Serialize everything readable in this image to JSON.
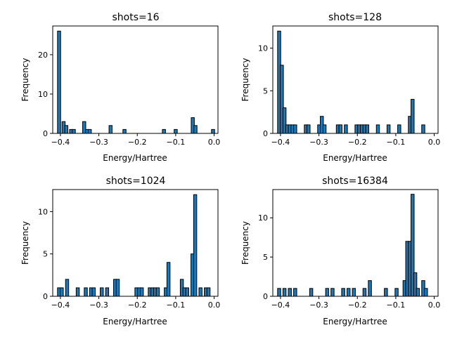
{
  "chart_data": [
    {
      "type": "bar",
      "title": "shots=16",
      "xlabel": "Energy/Hartree",
      "ylabel": "Frequency",
      "xlim": [
        -0.42,
        0.01
      ],
      "ylim": [
        0,
        27.3
      ],
      "xticks": [
        -0.4,
        -0.3,
        -0.2,
        -0.1,
        0.0
      ],
      "xtick_labels": [
        "−0.4",
        "−0.3",
        "−0.2",
        "−0.1",
        "0.0"
      ],
      "yticks": [
        0,
        10,
        20
      ],
      "bin_width": 0.0081,
      "bar_color": "#1f77b4",
      "bins": [
        {
          "x": -0.4035,
          "count": 26
        },
        {
          "x": -0.3917,
          "count": 3
        },
        {
          "x": -0.3847,
          "count": 2
        },
        {
          "x": -0.3722,
          "count": 1
        },
        {
          "x": -0.3652,
          "count": 1
        },
        {
          "x": -0.3381,
          "count": 3
        },
        {
          "x": -0.3306,
          "count": 1
        },
        {
          "x": -0.3236,
          "count": 1
        },
        {
          "x": -0.2694,
          "count": 2
        },
        {
          "x": -0.2333,
          "count": 1
        },
        {
          "x": -0.1306,
          "count": 1
        },
        {
          "x": -0.1,
          "count": 1
        },
        {
          "x": -0.0556,
          "count": 4
        },
        {
          "x": -0.0486,
          "count": 2
        },
        {
          "x": -0.0028,
          "count": 1
        }
      ]
    },
    {
      "type": "bar",
      "title": "shots=128",
      "xlabel": "Energy/Hartree",
      "ylabel": "Frequency",
      "xlim": [
        -0.42,
        0.01
      ],
      "ylim": [
        0,
        12.6
      ],
      "xticks": [
        -0.4,
        -0.3,
        -0.2,
        -0.1,
        0.0
      ],
      "xtick_labels": [
        "−0.4",
        "−0.3",
        "−0.2",
        "−0.1",
        "0.0"
      ],
      "yticks": [
        0,
        5,
        10
      ],
      "bin_width": 0.0081,
      "bar_color": "#1f77b4",
      "bins": [
        {
          "x": -0.4035,
          "count": 12
        },
        {
          "x": -0.3965,
          "count": 8
        },
        {
          "x": -0.3896,
          "count": 3
        },
        {
          "x": -0.3826,
          "count": 1
        },
        {
          "x": -0.3757,
          "count": 1
        },
        {
          "x": -0.3687,
          "count": 1
        },
        {
          "x": -0.3618,
          "count": 1
        },
        {
          "x": -0.334,
          "count": 1
        },
        {
          "x": -0.3271,
          "count": 1
        },
        {
          "x": -0.2993,
          "count": 1
        },
        {
          "x": -0.2924,
          "count": 2
        },
        {
          "x": -0.2854,
          "count": 1
        },
        {
          "x": -0.2507,
          "count": 1
        },
        {
          "x": -0.2438,
          "count": 1
        },
        {
          "x": -0.2299,
          "count": 1
        },
        {
          "x": -0.2021,
          "count": 1
        },
        {
          "x": -0.1951,
          "count": 1
        },
        {
          "x": -0.1882,
          "count": 1
        },
        {
          "x": -0.1813,
          "count": 1
        },
        {
          "x": -0.1743,
          "count": 1
        },
        {
          "x": -0.1465,
          "count": 1
        },
        {
          "x": -0.1188,
          "count": 1
        },
        {
          "x": -0.091,
          "count": 1
        },
        {
          "x": -0.0632,
          "count": 2
        },
        {
          "x": -0.0563,
          "count": 4
        },
        {
          "x": -0.0285,
          "count": 1
        }
      ]
    },
    {
      "type": "bar",
      "title": "shots=1024",
      "xlabel": "Energy/Hartree",
      "ylabel": "Frequency",
      "xlim": [
        -0.42,
        0.01
      ],
      "ylim": [
        0,
        12.6
      ],
      "xticks": [
        -0.4,
        -0.3,
        -0.2,
        -0.1,
        0.0
      ],
      "xtick_labels": [
        "−0.4",
        "−0.3",
        "−0.2",
        "−0.1",
        "0.0"
      ],
      "yticks": [
        0,
        5,
        10
      ],
      "bin_width": 0.0081,
      "bar_color": "#1f77b4",
      "bins": [
        {
          "x": -0.4035,
          "count": 1
        },
        {
          "x": -0.3965,
          "count": 1
        },
        {
          "x": -0.3826,
          "count": 2
        },
        {
          "x": -0.3549,
          "count": 1
        },
        {
          "x": -0.334,
          "count": 1
        },
        {
          "x": -0.3201,
          "count": 1
        },
        {
          "x": -0.3132,
          "count": 1
        },
        {
          "x": -0.2924,
          "count": 1
        },
        {
          "x": -0.2785,
          "count": 1
        },
        {
          "x": -0.2576,
          "count": 2
        },
        {
          "x": -0.2507,
          "count": 2
        },
        {
          "x": -0.2021,
          "count": 1
        },
        {
          "x": -0.1951,
          "count": 1
        },
        {
          "x": -0.1882,
          "count": 1
        },
        {
          "x": -0.1674,
          "count": 1
        },
        {
          "x": -0.1604,
          "count": 1
        },
        {
          "x": -0.1535,
          "count": 1
        },
        {
          "x": -0.1465,
          "count": 1
        },
        {
          "x": -0.1257,
          "count": 1
        },
        {
          "x": -0.1188,
          "count": 4
        },
        {
          "x": -0.084,
          "count": 2
        },
        {
          "x": -0.0771,
          "count": 1
        },
        {
          "x": -0.0701,
          "count": 1
        },
        {
          "x": -0.0563,
          "count": 5
        },
        {
          "x": -0.0493,
          "count": 12
        },
        {
          "x": -0.0354,
          "count": 1
        },
        {
          "x": -0.0215,
          "count": 1
        },
        {
          "x": -0.0146,
          "count": 1
        }
      ]
    },
    {
      "type": "bar",
      "title": "shots=16384",
      "xlabel": "Energy/Hartree",
      "ylabel": "Frequency",
      "xlim": [
        -0.42,
        0.01
      ],
      "ylim": [
        0,
        13.6
      ],
      "xticks": [
        -0.4,
        -0.3,
        -0.2,
        -0.1,
        0.0
      ],
      "xtick_labels": [
        "−0.4",
        "−0.3",
        "−0.2",
        "−0.1",
        "0.0"
      ],
      "yticks": [
        0,
        5,
        10
      ],
      "bin_width": 0.0081,
      "bar_color": "#1f77b4",
      "bins": [
        {
          "x": -0.4035,
          "count": 1
        },
        {
          "x": -0.3896,
          "count": 1
        },
        {
          "x": -0.3757,
          "count": 1
        },
        {
          "x": -0.3618,
          "count": 1
        },
        {
          "x": -0.3201,
          "count": 1
        },
        {
          "x": -0.2785,
          "count": 1
        },
        {
          "x": -0.2646,
          "count": 1
        },
        {
          "x": -0.2368,
          "count": 1
        },
        {
          "x": -0.2229,
          "count": 1
        },
        {
          "x": -0.209,
          "count": 1
        },
        {
          "x": -0.1813,
          "count": 1
        },
        {
          "x": -0.1674,
          "count": 2
        },
        {
          "x": -0.1257,
          "count": 1
        },
        {
          "x": -0.0979,
          "count": 1
        },
        {
          "x": -0.0771,
          "count": 2
        },
        {
          "x": -0.0701,
          "count": 7
        },
        {
          "x": -0.0632,
          "count": 7
        },
        {
          "x": -0.0563,
          "count": 13
        },
        {
          "x": -0.0493,
          "count": 3
        },
        {
          "x": -0.0424,
          "count": 1
        },
        {
          "x": -0.0285,
          "count": 2
        },
        {
          "x": -0.0215,
          "count": 1
        }
      ]
    }
  ]
}
